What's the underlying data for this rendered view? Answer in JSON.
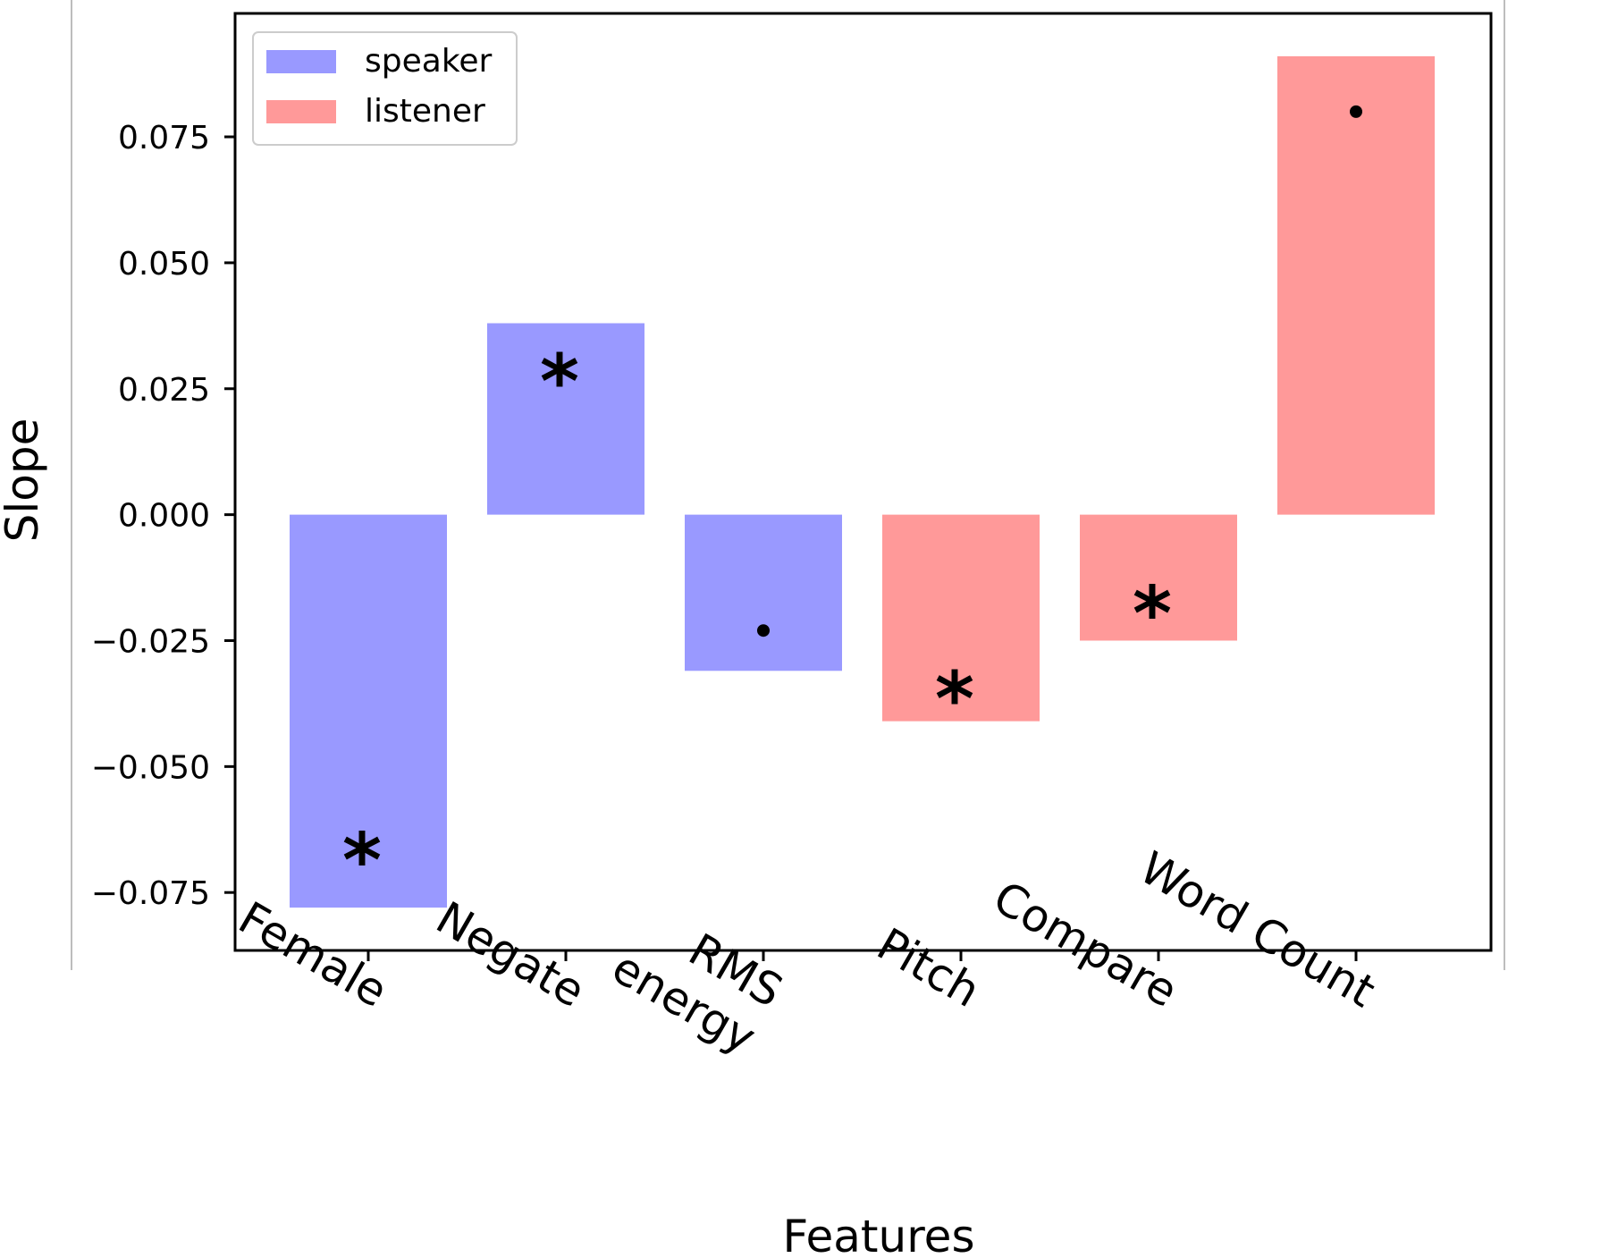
{
  "chart_data": {
    "type": "bar",
    "title": "",
    "xlabel": "Features",
    "ylabel": "Slope",
    "categories": [
      "Female",
      "Negate",
      "RMS energy",
      "Pitch",
      "Compare",
      "Word Count"
    ],
    "category_lines": [
      [
        "Female"
      ],
      [
        "Negate"
      ],
      [
        "RMS",
        "energy"
      ],
      [
        "Pitch"
      ],
      [
        "Compare"
      ],
      [
        "Word Count"
      ]
    ],
    "values": [
      -0.078,
      0.038,
      -0.031,
      -0.041,
      -0.025,
      0.091
    ],
    "groups": [
      "speaker",
      "speaker",
      "speaker",
      "listener",
      "listener",
      "listener"
    ],
    "significance": [
      "*",
      "*",
      "dot",
      "*",
      "*",
      "dot"
    ],
    "marker_values": [
      -0.066,
      0.029,
      -0.023,
      -0.034,
      -0.017,
      0.08
    ],
    "ylim": [
      -0.0865,
      0.0995
    ],
    "yticks": [
      0.075,
      0.05,
      0.025,
      0.0,
      -0.025,
      -0.05,
      -0.075
    ],
    "ytick_labels": [
      "0.075",
      "0.050",
      "0.025",
      "0.000",
      "−0.025",
      "−0.050",
      "−0.075"
    ],
    "legend": {
      "position": "top-left",
      "entries": [
        {
          "label": "speaker",
          "color": "#9999ff"
        },
        {
          "label": "listener",
          "color": "#ff9999"
        }
      ]
    },
    "colors": {
      "speaker": "#9999ff",
      "listener": "#ff9999"
    },
    "grid": false
  }
}
